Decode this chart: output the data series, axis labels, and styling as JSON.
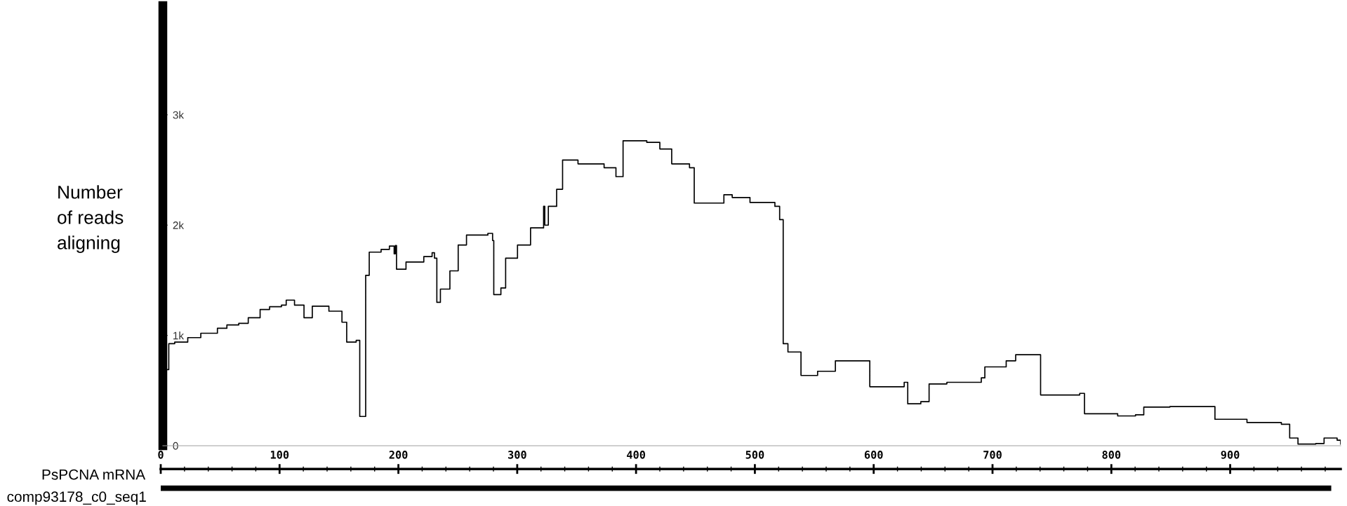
{
  "chart_data": {
    "type": "step",
    "xlabel": "PsPCNA mRNA",
    "ylabel": "Number\nof reads\naligning",
    "xlim": [
      0,
      993
    ],
    "xticks": [
      0,
      100,
      200,
      300,
      400,
      500,
      600,
      700,
      800,
      900
    ],
    "ylim": [
      0,
      3990
    ],
    "yticks": [
      {
        "value": 0,
        "label": "0"
      },
      {
        "value": 1000,
        "label": "1k"
      },
      {
        "value": 2000,
        "label": "2k"
      },
      {
        "value": 3000,
        "label": "3k"
      }
    ],
    "marker": "none",
    "line_style": "solid",
    "series": [
      {
        "color": "#000000",
        "x": [
          0,
          1,
          3,
          5,
          10,
          21,
          32,
          46,
          54,
          64,
          72,
          82,
          90,
          100,
          104,
          111,
          119,
          126,
          140,
          151,
          155,
          163,
          166,
          169,
          171,
          174,
          184,
          191,
          195,
          196,
          197,
          205,
          220,
          227,
          229,
          231,
          234,
          242,
          249,
          256,
          274,
          278,
          279,
          285,
          289,
          299,
          310,
          321,
          322,
          325,
          332,
          337,
          350,
          372,
          382,
          386,
          388,
          408,
          419,
          429,
          444,
          448,
          473,
          480,
          495,
          516,
          520,
          523,
          527,
          538,
          552,
          567,
          592,
          596,
          625,
          628,
          639,
          646,
          661,
          690,
          693,
          711,
          719,
          730,
          740,
          773,
          777,
          805,
          820,
          827,
          849,
          885,
          887,
          914,
          943,
          950,
          957,
          972,
          979,
          990,
          993
        ],
        "values": [
          458,
          460,
          690,
          925,
          940,
          980,
          1020,
          1065,
          1095,
          1110,
          1160,
          1235,
          1260,
          1275,
          1320,
          1275,
          1160,
          1265,
          1220,
          1120,
          940,
          955,
          265,
          265,
          1545,
          1755,
          1780,
          1810,
          1740,
          1815,
          1600,
          1665,
          1715,
          1750,
          1700,
          1300,
          1420,
          1585,
          1820,
          1910,
          1925,
          1860,
          1370,
          1430,
          1700,
          1820,
          1975,
          2170,
          2000,
          2170,
          2325,
          2590,
          2555,
          2520,
          2440,
          2440,
          2765,
          2750,
          2690,
          2555,
          2520,
          2200,
          2275,
          2250,
          2205,
          2170,
          2050,
          925,
          850,
          637,
          675,
          770,
          770,
          535,
          575,
          380,
          400,
          560,
          575,
          615,
          715,
          770,
          825,
          825,
          460,
          475,
          290,
          270,
          280,
          350,
          355,
          355,
          240,
          210,
          195,
          70,
          15,
          20,
          70,
          50,
          15
        ]
      }
    ],
    "annotations": [
      "comp93178_c0_seq1"
    ]
  }
}
